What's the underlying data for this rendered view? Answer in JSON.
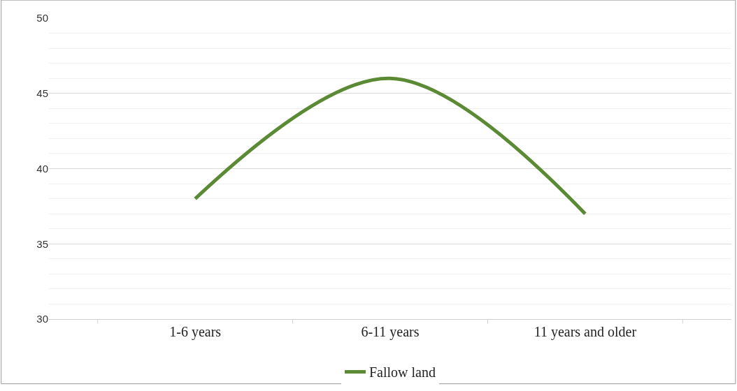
{
  "chart_data": {
    "type": "line",
    "categories": [
      "1-6 years",
      "6-11 years",
      "11 years and older"
    ],
    "series": [
      {
        "name": "Fallow land",
        "color": "#5b8a34",
        "values": [
          38,
          46,
          37
        ]
      }
    ],
    "ylim": [
      30,
      50
    ],
    "yticks": [
      30,
      35,
      40,
      45,
      50
    ],
    "grid": "y",
    "legend": "bottom",
    "marker": "none",
    "line_style": "solid"
  }
}
